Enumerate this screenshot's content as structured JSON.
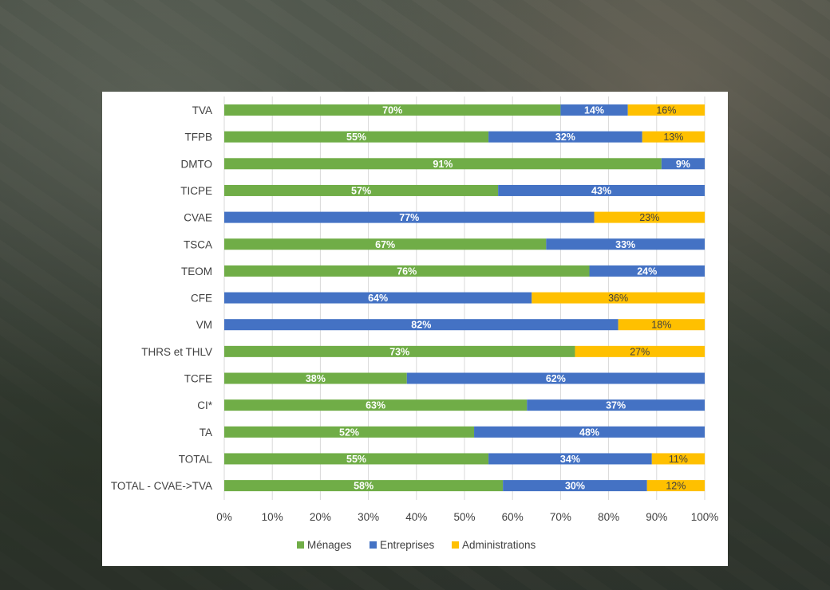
{
  "chart_data": {
    "type": "bar",
    "orientation": "horizontal",
    "stacked": true,
    "categories": [
      "TVA",
      "TFPB",
      "DMTO",
      "TICPE",
      "CVAE",
      "TSCA",
      "TEOM",
      "CFE",
      "VM",
      "THRS et THLV",
      "TCFE",
      "CI*",
      "TA",
      "TOTAL",
      "TOTAL - CVAE->TVA"
    ],
    "series": [
      {
        "name": "Ménages",
        "color": "#70ad47",
        "values": [
          70,
          55,
          91,
          57,
          0,
          67,
          76,
          0,
          0,
          73,
          38,
          63,
          52,
          55,
          58
        ]
      },
      {
        "name": "Entreprises",
        "color": "#4472c4",
        "values": [
          14,
          32,
          9,
          43,
          77,
          33,
          24,
          64,
          82,
          0,
          62,
          37,
          48,
          34,
          30
        ]
      },
      {
        "name": "Administrations",
        "color": "#ffc000",
        "values": [
          16,
          13,
          0,
          0,
          23,
          0,
          0,
          36,
          18,
          27,
          0,
          0,
          0,
          11,
          12
        ]
      }
    ],
    "data_labels": [
      [
        "70%",
        "14%",
        "16%"
      ],
      [
        "55%",
        "32%",
        "13%"
      ],
      [
        "91%",
        "9%",
        ""
      ],
      [
        "57%",
        "43%",
        ""
      ],
      [
        "",
        "77%",
        "23%"
      ],
      [
        "67%",
        "33%",
        ""
      ],
      [
        "76%",
        "24%",
        ""
      ],
      [
        "",
        "64%",
        "36%"
      ],
      [
        "",
        "82%",
        "18%"
      ],
      [
        "73%",
        "",
        "27%"
      ],
      [
        "38%",
        "62%",
        ""
      ],
      [
        "63%",
        "37%",
        ""
      ],
      [
        "52%",
        "48%",
        ""
      ],
      [
        "55%",
        "34%",
        "11%"
      ],
      [
        "58%",
        "30%",
        "12%"
      ]
    ],
    "xlim": [
      0,
      100
    ],
    "x_ticks": [
      "0%",
      "10%",
      "20%",
      "30%",
      "40%",
      "50%",
      "60%",
      "70%",
      "80%",
      "90%",
      "100%"
    ],
    "grid": true,
    "legend_position": "bottom"
  }
}
